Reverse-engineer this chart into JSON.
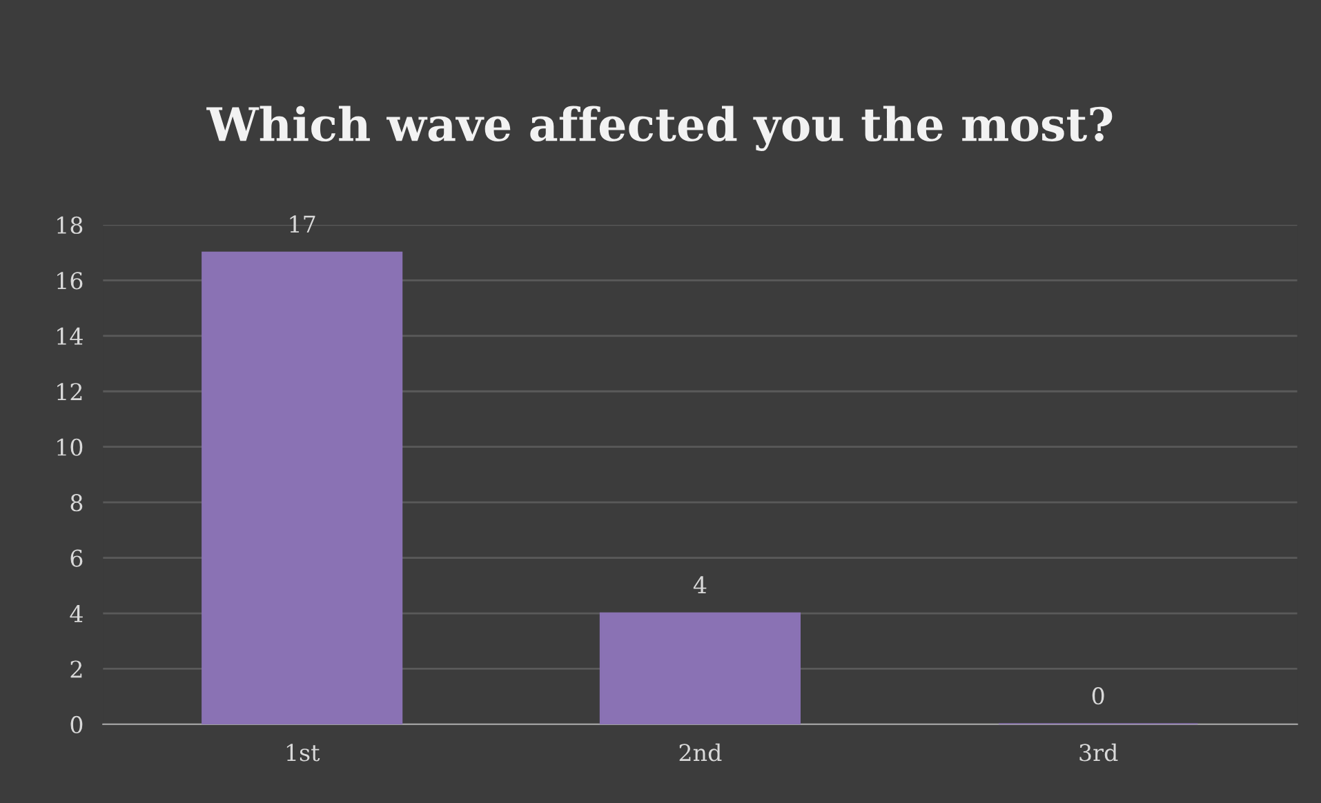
{
  "chart_data": {
    "type": "bar",
    "title": "Which wave affected you the most?",
    "categories": [
      "1st",
      "2nd",
      "3rd"
    ],
    "values": [
      17,
      4,
      0
    ],
    "color": "#8a72b4",
    "ylim": [
      0,
      18
    ],
    "yticks": [
      0,
      2,
      4,
      6,
      8,
      10,
      12,
      14,
      16,
      18
    ],
    "grid": "y",
    "data_labels": true
  }
}
